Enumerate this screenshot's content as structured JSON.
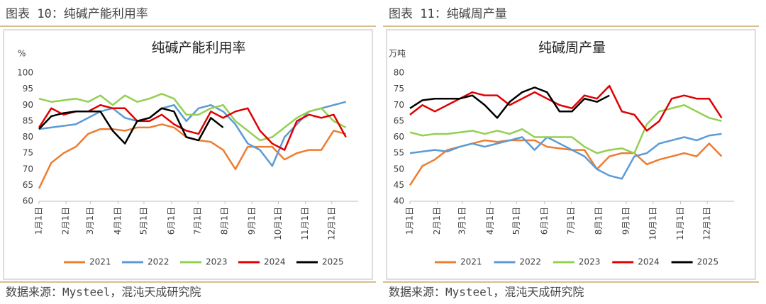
{
  "chart_data": [
    {
      "type": "line",
      "header": "图表 10：纯碱产能利用率",
      "title": "纯碱产能利用率",
      "y_label": "%",
      "source": "数据来源：Mysteel，混沌天成研究院",
      "x": [
        0,
        2,
        4,
        6,
        8,
        10,
        12,
        14,
        16,
        18,
        20,
        22,
        24,
        26,
        28,
        30,
        32,
        34,
        36,
        38,
        40,
        42,
        44,
        46,
        48,
        50
      ],
      "xlim": [
        0,
        52
      ],
      "xticks": [
        {
          "value": 0,
          "label": "1月1日"
        },
        {
          "value": 4.4,
          "label": "2月1日"
        },
        {
          "value": 8.4,
          "label": "3月1日"
        },
        {
          "value": 12.9,
          "label": "4月1日"
        },
        {
          "value": 17.1,
          "label": "5月1日"
        },
        {
          "value": 21.6,
          "label": "6月1日"
        },
        {
          "value": 25.9,
          "label": "7月1日"
        },
        {
          "value": 30.3,
          "label": "8月1日"
        },
        {
          "value": 34.7,
          "label": "9月1日"
        },
        {
          "value": 39,
          "label": "10月1日"
        },
        {
          "value": 43.4,
          "label": "11月1日"
        },
        {
          "value": 47.7,
          "label": "12月1日"
        }
      ],
      "ylim": [
        60,
        100
      ],
      "yticks": [
        60,
        65,
        70,
        75,
        80,
        85,
        90,
        95,
        100
      ],
      "series": [
        {
          "name": "2021",
          "color": "#ED7D31",
          "values": [
            64,
            72,
            75,
            77,
            81,
            82.5,
            82.5,
            82,
            83,
            83,
            84,
            83,
            80,
            79,
            78.5,
            76,
            70,
            77,
            77,
            77,
            73,
            75,
            76,
            76,
            82,
            81
          ]
        },
        {
          "name": "2022",
          "color": "#5B9BD5",
          "values": [
            82.5,
            83,
            83.5,
            84,
            86,
            88,
            89,
            86,
            85,
            86,
            89,
            90,
            85,
            89,
            90,
            88,
            84,
            78,
            76,
            71,
            80,
            84,
            88,
            89,
            90,
            91
          ]
        },
        {
          "name": "2023",
          "color": "#92D050",
          "values": [
            92,
            91,
            91.5,
            92,
            91,
            93,
            90,
            93,
            91,
            92,
            93.5,
            92,
            87,
            87,
            89,
            90,
            85,
            82,
            79,
            80,
            83,
            86,
            88,
            89,
            85,
            83
          ]
        },
        {
          "name": "2024",
          "color": "#E00000",
          "values": [
            83,
            89,
            87,
            88,
            88,
            90,
            89,
            89,
            85,
            85,
            87,
            84,
            82,
            81,
            88,
            86,
            88,
            89,
            82,
            78,
            76,
            85,
            87,
            86,
            87,
            80
          ]
        },
        {
          "name": "2025",
          "color": "#000000",
          "values": [
            82.5,
            86.5,
            87.5,
            88,
            88,
            88,
            82,
            78,
            85,
            86,
            89,
            88,
            80,
            79,
            86,
            83,
            null,
            null,
            null,
            null,
            null,
            null,
            null,
            null,
            null,
            null
          ]
        }
      ]
    },
    {
      "type": "line",
      "header": "图表 11：纯碱周产量",
      "title": "纯碱周产量",
      "y_label": "万吨",
      "source": "数据来源：Mysteel，混沌天成研究院",
      "x": [
        0,
        2,
        4,
        6,
        8,
        10,
        12,
        14,
        16,
        18,
        20,
        22,
        24,
        26,
        28,
        30,
        32,
        34,
        36,
        38,
        40,
        42,
        44,
        46,
        48,
        50
      ],
      "xlim": [
        0,
        52
      ],
      "xticks": [
        {
          "value": 0,
          "label": "1月1日"
        },
        {
          "value": 4.4,
          "label": "2月1日"
        },
        {
          "value": 8.4,
          "label": "3月1日"
        },
        {
          "value": 12.9,
          "label": "4月1日"
        },
        {
          "value": 17.1,
          "label": "5月1日"
        },
        {
          "value": 21.6,
          "label": "6月1日"
        },
        {
          "value": 25.9,
          "label": "7月1日"
        },
        {
          "value": 30.3,
          "label": "8月1日"
        },
        {
          "value": 34.7,
          "label": "9月1日"
        },
        {
          "value": 39,
          "label": "10月1日"
        },
        {
          "value": 43.4,
          "label": "11月1日"
        },
        {
          "value": 47.7,
          "label": "12月1日"
        }
      ],
      "ylim": [
        40,
        80
      ],
      "yticks": [
        40,
        45,
        50,
        55,
        60,
        65,
        70,
        75,
        80
      ],
      "series": [
        {
          "name": "2021",
          "color": "#ED7D31",
          "values": [
            45,
            51,
            53,
            56,
            57,
            58,
            59,
            58.5,
            59,
            59,
            59,
            57,
            56.5,
            56,
            56,
            50,
            54,
            55,
            55,
            51.5,
            53,
            54,
            55,
            54,
            58,
            54
          ]
        },
        {
          "name": "2022",
          "color": "#5B9BD5",
          "values": [
            55,
            55.5,
            56,
            55.5,
            57,
            58,
            57,
            58,
            59,
            60,
            56,
            60,
            58,
            56,
            54,
            50,
            48,
            47,
            54,
            55,
            58,
            59,
            60,
            59,
            60.5,
            61
          ]
        },
        {
          "name": "2023",
          "color": "#92D050",
          "values": [
            61.5,
            60.5,
            61,
            61,
            61.5,
            62,
            61,
            62,
            61,
            62.5,
            60,
            60,
            60,
            60,
            57,
            55,
            56,
            56.5,
            55,
            64,
            68,
            69,
            70,
            68,
            66,
            65
          ]
        },
        {
          "name": "2024",
          "color": "#E00000",
          "values": [
            67,
            70,
            68,
            70,
            72,
            74,
            73,
            73,
            70,
            72,
            74,
            72,
            70,
            69,
            73,
            72,
            76,
            68,
            67,
            62,
            65,
            72,
            73,
            72,
            72,
            66
          ]
        },
        {
          "name": "2025",
          "color": "#000000",
          "values": [
            69,
            71.5,
            72,
            72,
            72,
            73,
            70,
            66,
            71,
            74,
            75.5,
            74,
            68,
            68,
            72,
            71,
            73,
            null,
            null,
            null,
            null,
            null,
            null,
            null,
            null,
            null
          ]
        }
      ]
    }
  ]
}
